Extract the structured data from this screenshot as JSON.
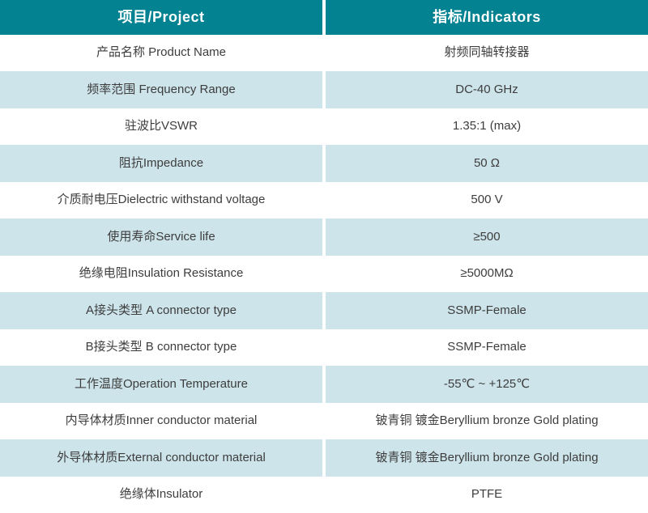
{
  "table": {
    "colors": {
      "header_bg": "#038291",
      "header_text": "#ffffff",
      "row_bg": "#ffffff",
      "row_alt_bg": "#cde4ea",
      "body_text": "#3d3d3d"
    },
    "headers": {
      "project": "项目/Project",
      "indicators": "指标/Indicators"
    },
    "rows": [
      {
        "project": "产品名称 Product Name",
        "indicator": "射频同轴转接器"
      },
      {
        "project": "频率范围 Frequency Range",
        "indicator": "DC-40 GHz"
      },
      {
        "project": "驻波比VSWR",
        "indicator": "1.35:1 (max)"
      },
      {
        "project": "阻抗Impedance",
        "indicator": "50 Ω"
      },
      {
        "project": "介质耐电压Dielectric withstand voltage",
        "indicator": "500 V"
      },
      {
        "project": "使用寿命Service life",
        "indicator": "≥500"
      },
      {
        "project": "绝缘电阻Insulation Resistance",
        "indicator": "≥5000MΩ"
      },
      {
        "project": "A接头类型 A connector type",
        "indicator": "SSMP-Female"
      },
      {
        "project": "B接头类型 B connector type",
        "indicator": "SSMP-Female"
      },
      {
        "project": "工作温度Operation Temperature",
        "indicator": "-55℃ ~ +125℃"
      },
      {
        "project": "内导体材质Inner conductor material",
        "indicator": "铍青铜 镀金Beryllium bronze Gold plating"
      },
      {
        "project": "外导体材质External conductor material",
        "indicator": "铍青铜 镀金Beryllium bronze Gold plating"
      },
      {
        "project": "绝缘体Insulator",
        "indicator": "PTFE"
      }
    ]
  }
}
